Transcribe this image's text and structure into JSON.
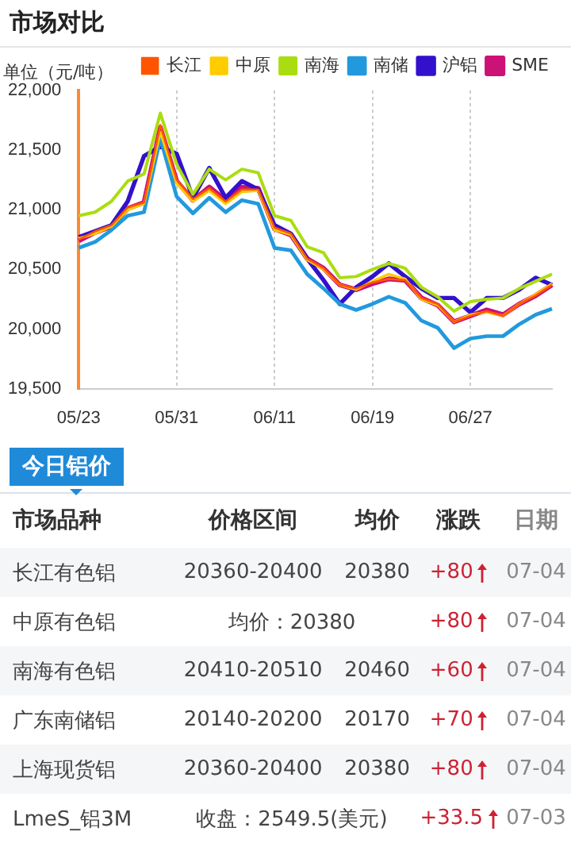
{
  "chart_data": [
    {
      "type": "line",
      "title": "市场对比",
      "ylabel": "单位（元/吨）",
      "categories": [
        "05/23",
        null,
        null,
        null,
        null,
        null,
        "05/31",
        null,
        null,
        null,
        null,
        null,
        "06/11",
        null,
        null,
        null,
        null,
        null,
        "06/19",
        null,
        null,
        null,
        null,
        null,
        "06/27",
        null,
        null,
        null,
        null,
        null
      ],
      "series": [
        {
          "name": "长江",
          "color": "#ff5500",
          "values": [
            20750,
            20820,
            20870,
            21020,
            21060,
            21710,
            21250,
            21090,
            21180,
            21070,
            21170,
            21170,
            20850,
            20800,
            20590,
            20510,
            20370,
            20340,
            20390,
            20420,
            20410,
            20260,
            20210,
            20060,
            20110,
            20150,
            20110,
            20210,
            20280,
            20370
          ]
        },
        {
          "name": "中原",
          "color": "#ffcc00",
          "values": [
            20760,
            20800,
            20860,
            21000,
            21050,
            21650,
            21220,
            21070,
            21160,
            21050,
            21150,
            21160,
            20830,
            20790,
            20580,
            20500,
            20370,
            20330,
            20400,
            20460,
            20420,
            20250,
            20200,
            20060,
            20120,
            20140,
            20110,
            20210,
            20290,
            20380
          ]
        },
        {
          "name": "南海",
          "color": "#aadd11",
          "values": [
            20950,
            20980,
            21070,
            21240,
            21300,
            21810,
            21380,
            21130,
            21340,
            21250,
            21340,
            21310,
            20950,
            20910,
            20690,
            20640,
            20430,
            20440,
            20500,
            20550,
            20510,
            20350,
            20270,
            20150,
            20230,
            20250,
            20260,
            20340,
            20400,
            20460
          ]
        },
        {
          "name": "南储",
          "color": "#2299dd",
          "values": [
            20680,
            20730,
            20830,
            20950,
            20980,
            21600,
            21110,
            20970,
            21100,
            20980,
            21080,
            21050,
            20680,
            20660,
            20460,
            20340,
            20210,
            20160,
            20210,
            20270,
            20220,
            20070,
            20010,
            19840,
            19920,
            19940,
            19940,
            20040,
            20120,
            20170
          ]
        },
        {
          "name": "沪铝",
          "color": "#3311cc",
          "values": [
            20770,
            20820,
            20870,
            21070,
            21450,
            21530,
            21470,
            21100,
            21350,
            21100,
            21240,
            21170,
            20870,
            20800,
            20590,
            20410,
            20210,
            20350,
            20440,
            20550,
            20440,
            20340,
            20260,
            20260,
            20140,
            20260,
            20260,
            20330,
            20430,
            20370
          ]
        },
        {
          "name": "SME",
          "color": "#cc1177",
          "values": [
            20740,
            20810,
            20860,
            21010,
            21060,
            21690,
            21240,
            21080,
            21190,
            21080,
            21190,
            21180,
            20840,
            20790,
            20590,
            20510,
            20370,
            20330,
            20380,
            20420,
            20410,
            20260,
            20200,
            20060,
            20110,
            20160,
            20120,
            20210,
            20280,
            20370
          ]
        }
      ],
      "ylim": [
        19500,
        22000
      ],
      "yticks": [
        {
          "value": 19500,
          "label": "19,500"
        },
        {
          "value": 20000,
          "label": "20,000"
        },
        {
          "value": 20500,
          "label": "20,500"
        },
        {
          "value": 21000,
          "label": "21,000"
        },
        {
          "value": 21500,
          "label": "21,500"
        },
        {
          "value": 22000,
          "label": "22,000"
        }
      ],
      "grid": "x",
      "legend": "top",
      "marker": "none"
    },
    {
      "type": "other",
      "title": "今日铝价",
      "categories": [
        "市场品种",
        "价格区间",
        "均价",
        "涨跌",
        "日期"
      ],
      "y_categories": [
        "长江有色铝",
        "中原有色铝",
        "南海有色铝",
        "广东南储铝",
        "上海现货铝",
        "LmeS_铝3M"
      ],
      "cell_labels": [
        [
          "20360-20400",
          "20380",
          "+80",
          "07-04"
        ],
        [
          "均价：20380",
          null,
          "+80",
          "07-04"
        ],
        [
          "20410-20510",
          "20460",
          "+60",
          "07-04"
        ],
        [
          "20140-20200",
          "20170",
          "+70",
          "07-04"
        ],
        [
          "20360-20400",
          "20380",
          "+80",
          "07-04"
        ],
        [
          "收盘：2549.5(美元)",
          null,
          "+33.5",
          "07-03"
        ]
      ]
    }
  ]
}
